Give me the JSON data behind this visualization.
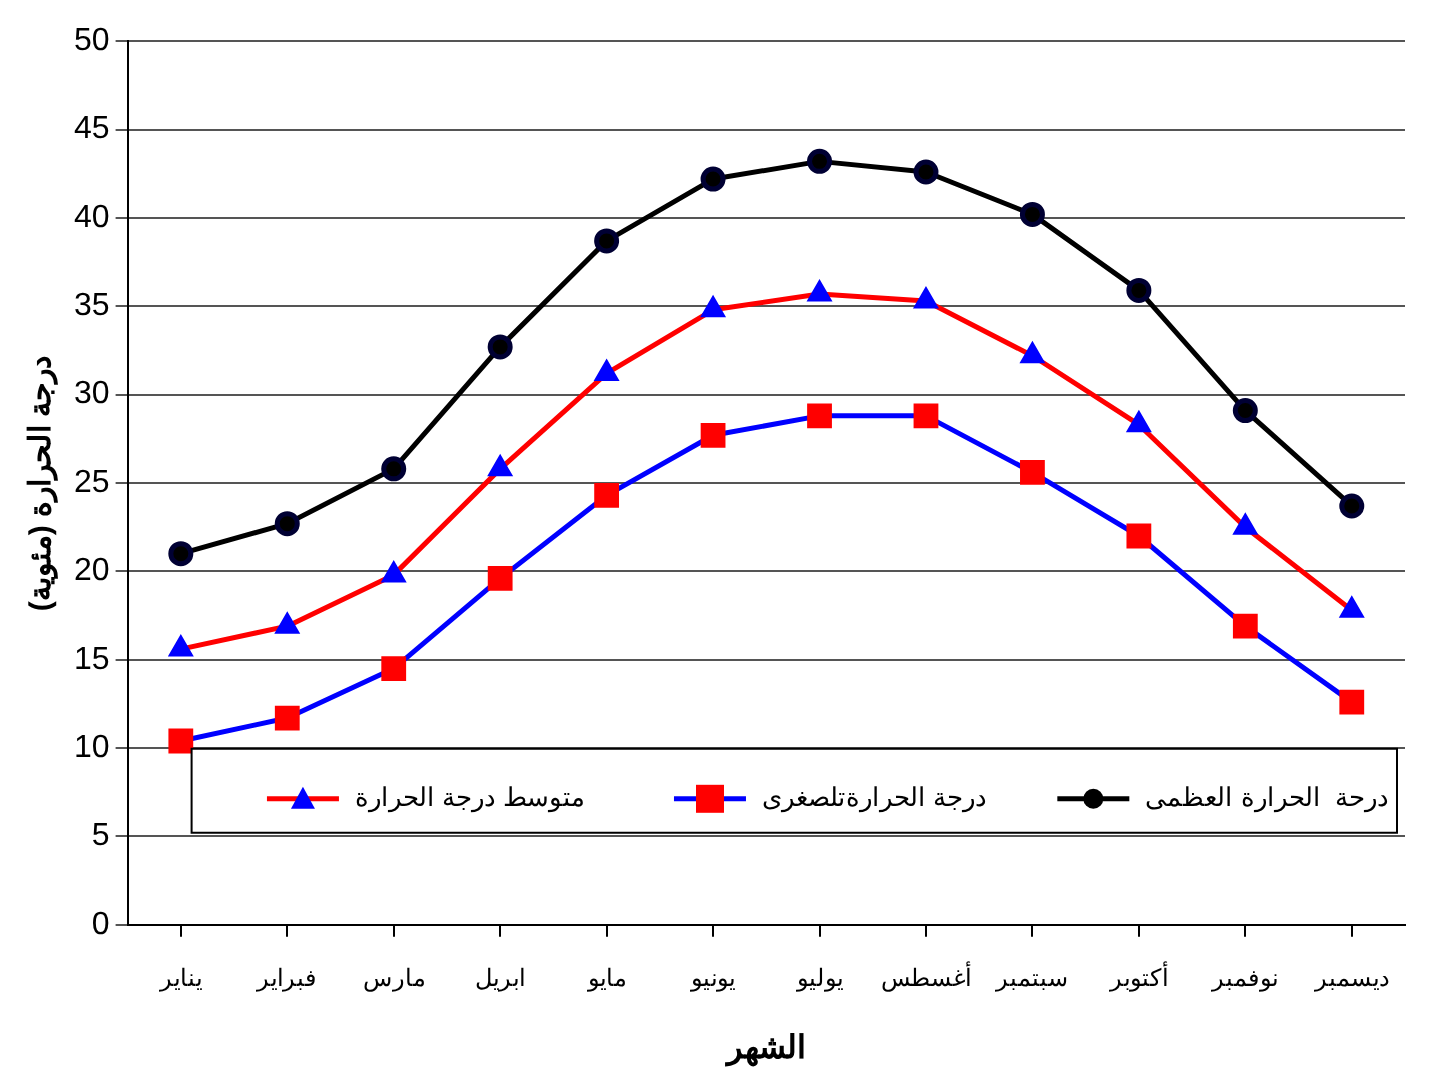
{
  "chart_data": {
    "type": "line",
    "ylabel": "درجة الحرارة (مئوية)",
    "xlabel": "الشهر",
    "categories": [
      "يناير",
      "فبراير",
      "مارس",
      "ابريل",
      "مايو",
      "يونيو",
      "يوليو",
      "أغسطس",
      "سبتمبر",
      "أكتوبر",
      "نوفمبر",
      "ديسمبر"
    ],
    "series": [
      {
        "name": "درحة  الحرارة العظمى",
        "color": "#000000",
        "marker": "circle",
        "values": [
          21.0,
          22.7,
          25.8,
          32.7,
          38.7,
          42.2,
          43.2,
          42.6,
          40.2,
          35.9,
          29.1,
          23.7
        ]
      },
      {
        "name": "درجة الحرارةتلصغرى",
        "color": "#0000ff",
        "marker": "square",
        "values": [
          10.4,
          11.7,
          14.5,
          19.6,
          24.3,
          27.7,
          28.8,
          28.8,
          25.6,
          22.0,
          16.9,
          12.6
        ]
      },
      {
        "name": "متوسط درجة الحرارة",
        "color": "#ff0000",
        "marker": "triangle",
        "values": [
          15.6,
          16.9,
          19.8,
          25.8,
          31.2,
          34.8,
          35.7,
          35.3,
          32.2,
          28.3,
          22.5,
          17.8
        ]
      }
    ],
    "ylim": [
      0,
      50
    ],
    "yticks": [
      0,
      5,
      10,
      15,
      20,
      25,
      30,
      35,
      40,
      45,
      50
    ],
    "grid": "y",
    "legend": "bottom",
    "line_style": "solid"
  }
}
